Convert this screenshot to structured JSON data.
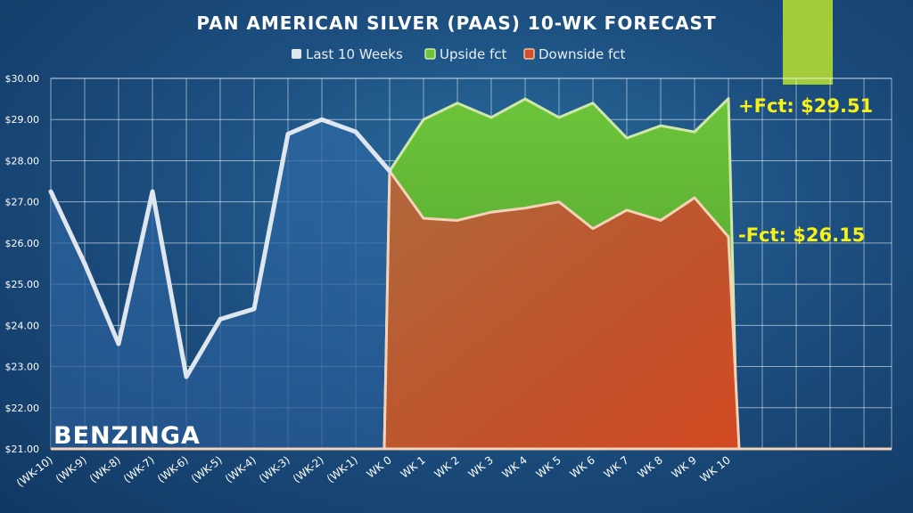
{
  "chart_data": {
    "type": "area",
    "title": "PAN AMERICAN SILVER (PAAS) 10-WK FORECAST",
    "categories": [
      "(WK-10)",
      "(WK-9)",
      "(WK-8)",
      "(WK-7)",
      "(WK-6)",
      "(WK-5)",
      "(WK-4)",
      "(WK-3)",
      "(WK-2)",
      "(WK-1)",
      "WK 0",
      "WK 1",
      "WK 2",
      "WK 3",
      "WK 4",
      "WK 5",
      "WK 6",
      "WK 7",
      "WK 8",
      "WK 9",
      "WK 10"
    ],
    "ylim": [
      21,
      30
    ],
    "yticks": [
      "$21.00",
      "$22.00",
      "$23.00",
      "$24.00",
      "$25.00",
      "$26.00",
      "$27.00",
      "$28.00",
      "$29.00",
      "$30.00"
    ],
    "series": [
      {
        "name": "Last 10 Weeks",
        "color": "#dfe6ee",
        "values": [
          27.25,
          25.5,
          23.55,
          27.25,
          22.75,
          24.15,
          24.4,
          28.65,
          29.0,
          28.7,
          27.75,
          null,
          null,
          null,
          null,
          null,
          null,
          null,
          null,
          null,
          null
        ]
      },
      {
        "name": "Upside fct",
        "color": "#5ea832",
        "values": [
          null,
          null,
          null,
          null,
          null,
          null,
          null,
          null,
          null,
          null,
          27.75,
          29.0,
          29.4,
          29.05,
          29.5,
          29.05,
          29.4,
          28.55,
          28.85,
          28.7,
          29.51
        ]
      },
      {
        "name": "Downside fct",
        "color": "#d5502a",
        "values": [
          null,
          null,
          null,
          null,
          null,
          null,
          null,
          null,
          null,
          null,
          27.75,
          26.6,
          26.55,
          26.75,
          26.85,
          27.0,
          26.35,
          26.8,
          26.55,
          27.1,
          26.15
        ]
      }
    ],
    "legend_position": "top",
    "grid": true,
    "annotations": {
      "upside": "+Fct: $29.51",
      "downside": "-Fct: $26.15"
    }
  },
  "branding": {
    "logo": "BENZINGA"
  },
  "colors": {
    "accent_tab": "#a3cc3a",
    "annotation": "#f7f11a"
  }
}
